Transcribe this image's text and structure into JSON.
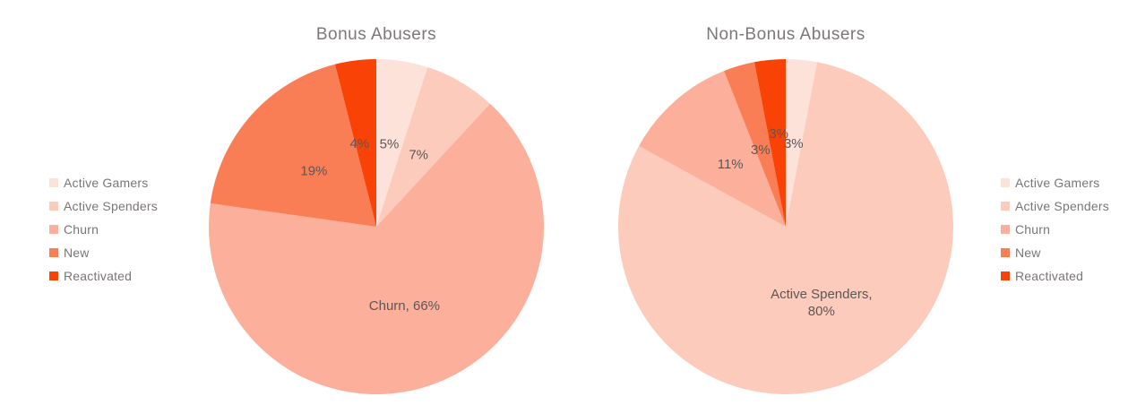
{
  "panel": {
    "background": "#ffffff",
    "title_color": "#7d7878",
    "label_color": "#5c5757",
    "legend_text_color": "#7b7575"
  },
  "chart_data": [
    {
      "type": "pie",
      "title": "Bonus Abusers",
      "categories": [
        "Active Gamers",
        "Active Spenders",
        "Churn",
        "New",
        "Reactivated"
      ],
      "values": [
        5,
        7,
        66,
        19,
        4
      ],
      "unit": "percent",
      "colors": [
        "#fde2d9",
        "#fdcbbb",
        "#fcb09b",
        "#f97d55",
        "#f94306"
      ],
      "slice_labels": [
        "5%",
        "7%",
        "Churn, 66%",
        "19%",
        "4%"
      ],
      "legend_position": "left",
      "start_angle_deg": 0,
      "direction": "clockwise"
    },
    {
      "type": "pie",
      "title": "Non-Bonus Abusers",
      "categories": [
        "Active Gamers",
        "Active Spenders",
        "Churn",
        "New",
        "Reactivated"
      ],
      "values": [
        3,
        80,
        11,
        3,
        3
      ],
      "unit": "percent",
      "colors": [
        "#fde2d9",
        "#fdcbbb",
        "#fcb09b",
        "#f97d55",
        "#f94306"
      ],
      "slice_labels": [
        "3%",
        "Active Spenders,\n80%",
        "11%",
        "3%",
        "3%"
      ],
      "legend_position": "right",
      "start_angle_deg": 0,
      "direction": "clockwise"
    }
  ]
}
